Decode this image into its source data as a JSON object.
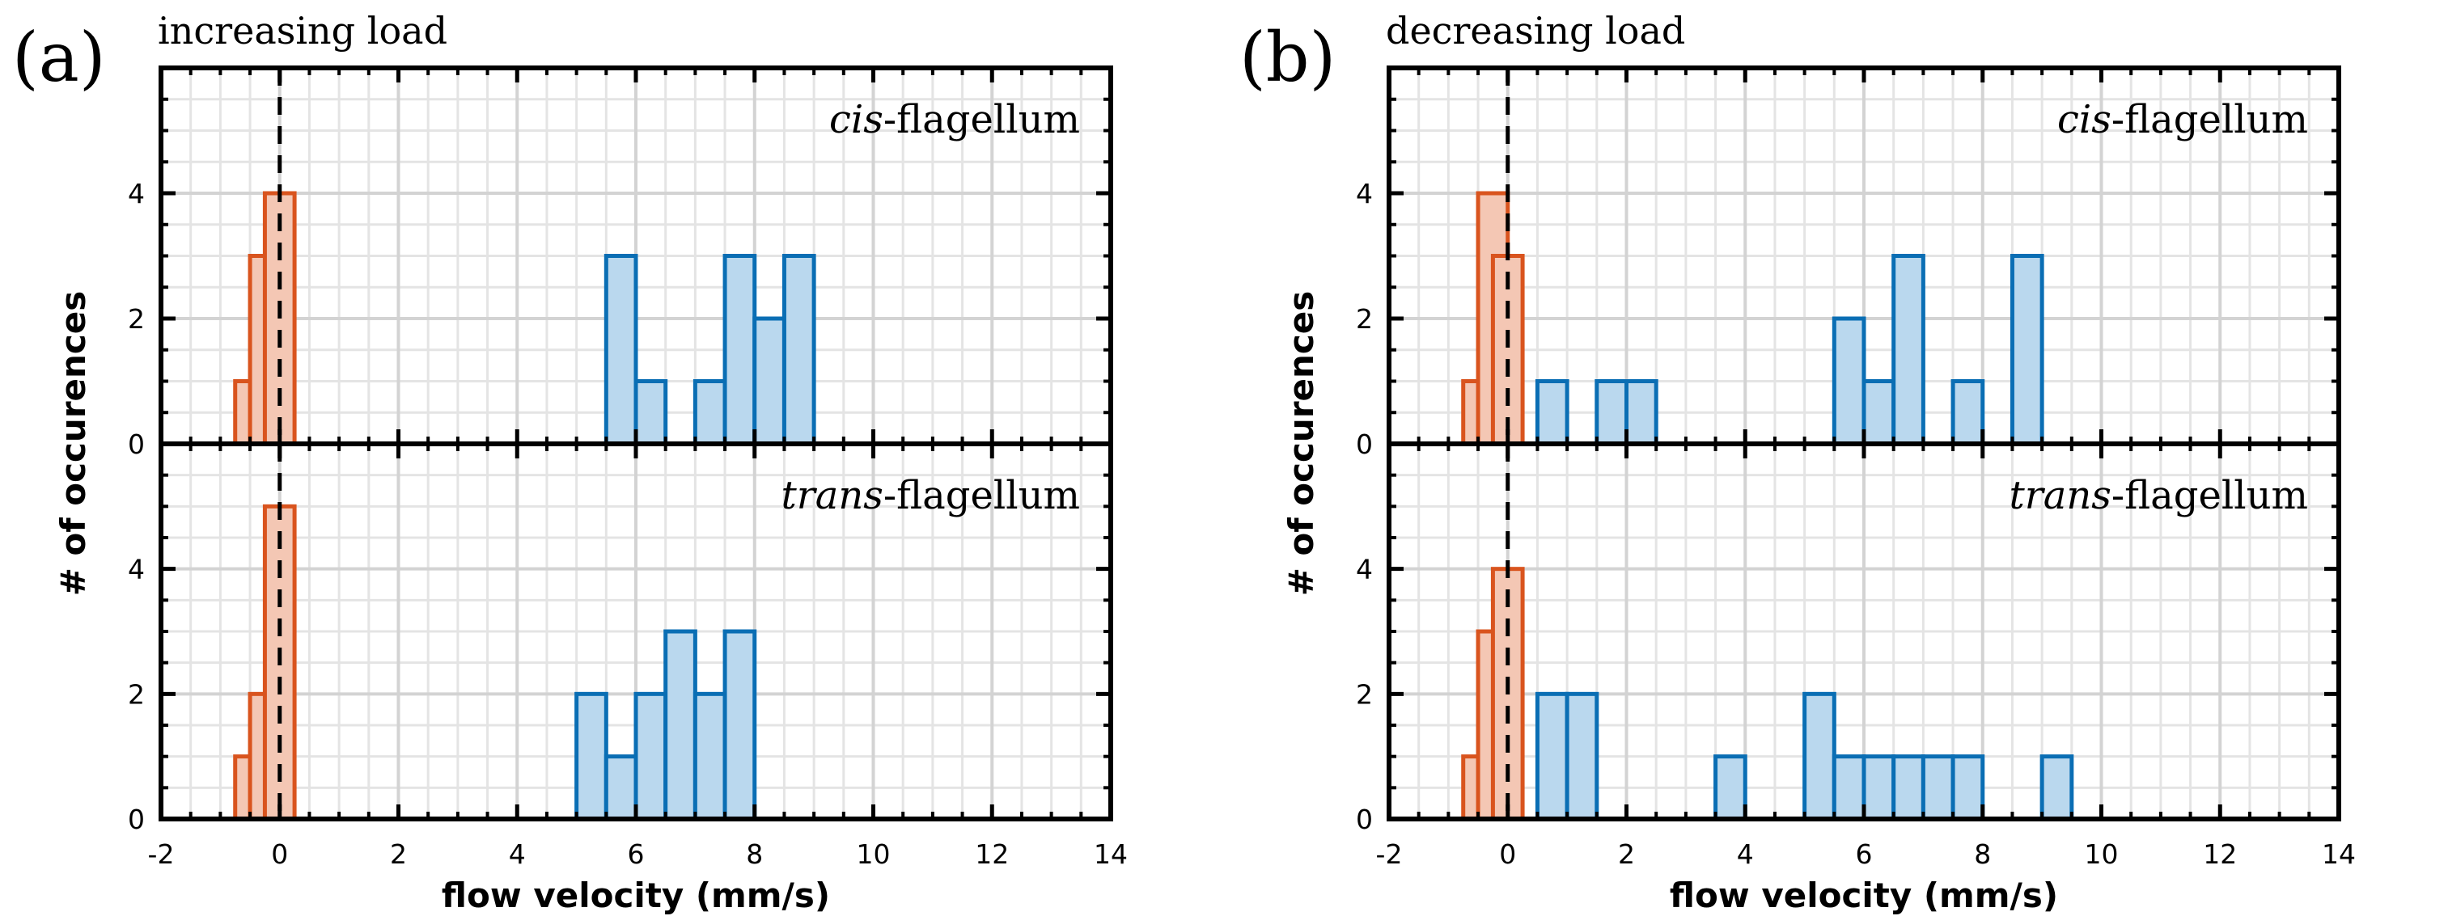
{
  "figure": {
    "panel_labels": [
      "(a)",
      "(b)"
    ],
    "panel_titles": [
      "increasing load",
      "decreasing load"
    ],
    "xlabel": "flow velocity (mm/s)",
    "ylabel": "# of occurences",
    "subplot_labels": [
      {
        "italic": "cis",
        "rest": "-flagellum"
      },
      {
        "italic": "trans",
        "rest": "-flagellum"
      }
    ],
    "colors": {
      "negative_edge": "#d9541e",
      "negative_fill": "#f4c7b4",
      "positive_edge": "#0a6eb4",
      "positive_fill": "#bad8ee",
      "grid": "#d3d3d3",
      "axis": "#000000"
    }
  },
  "chart_data": [
    {
      "type": "bar",
      "panel": "(a)",
      "title": "increasing load",
      "subplot": "cis-flagellum",
      "xlabel": "flow velocity (mm/s)",
      "ylabel": "# of occurences",
      "xlim": [
        -2,
        14
      ],
      "ylim": [
        0,
        6
      ],
      "xticks": [
        -2,
        0,
        2,
        4,
        6,
        8,
        10,
        12,
        14
      ],
      "yticks": [
        0,
        2,
        4
      ],
      "bin_width": 0.5,
      "grid": true,
      "series": [
        {
          "group": "negative",
          "bins": [
            [
              -0.75,
              1
            ],
            [
              -0.5,
              3
            ],
            [
              -0.25,
              4
            ]
          ]
        },
        {
          "group": "positive",
          "bins": [
            [
              5.5,
              3
            ],
            [
              6.0,
              1
            ],
            [
              7.0,
              1
            ],
            [
              7.5,
              3
            ],
            [
              8.0,
              2
            ],
            [
              8.5,
              3
            ]
          ]
        }
      ]
    },
    {
      "type": "bar",
      "panel": "(a)",
      "title": "increasing load",
      "subplot": "trans-flagellum",
      "xlabel": "flow velocity (mm/s)",
      "ylabel": "# of occurences",
      "xlim": [
        -2,
        14
      ],
      "ylim": [
        0,
        6
      ],
      "xticks": [
        -2,
        0,
        2,
        4,
        6,
        8,
        10,
        12,
        14
      ],
      "yticks": [
        0,
        2,
        4
      ],
      "bin_width": 0.5,
      "grid": true,
      "series": [
        {
          "group": "negative",
          "bins": [
            [
              -0.75,
              1
            ],
            [
              -0.5,
              2
            ],
            [
              -0.25,
              5
            ]
          ]
        },
        {
          "group": "positive",
          "bins": [
            [
              5.0,
              2
            ],
            [
              5.5,
              1
            ],
            [
              6.0,
              2
            ],
            [
              6.5,
              3
            ],
            [
              7.0,
              2
            ],
            [
              7.5,
              3
            ]
          ]
        }
      ]
    },
    {
      "type": "bar",
      "panel": "(b)",
      "title": "decreasing load",
      "subplot": "cis-flagellum",
      "xlabel": "flow velocity (mm/s)",
      "ylabel": "# of occurences",
      "xlim": [
        -2,
        14
      ],
      "ylim": [
        0,
        6
      ],
      "xticks": [
        -2,
        0,
        2,
        4,
        6,
        8,
        10,
        12,
        14
      ],
      "yticks": [
        0,
        2,
        4
      ],
      "bin_width": 0.5,
      "grid": true,
      "series": [
        {
          "group": "negative",
          "bins": [
            [
              -0.75,
              1
            ],
            [
              -0.5,
              4
            ],
            [
              -0.25,
              3
            ]
          ]
        },
        {
          "group": "positive",
          "bins": [
            [
              0.5,
              1
            ],
            [
              1.5,
              1
            ],
            [
              2.0,
              1
            ],
            [
              5.5,
              2
            ],
            [
              6.0,
              1
            ],
            [
              6.5,
              3
            ],
            [
              7.5,
              1
            ],
            [
              8.5,
              3
            ]
          ]
        }
      ]
    },
    {
      "type": "bar",
      "panel": "(b)",
      "title": "decreasing load",
      "subplot": "trans-flagellum",
      "xlabel": "flow velocity (mm/s)",
      "ylabel": "# of occurences",
      "xlim": [
        -2,
        14
      ],
      "ylim": [
        0,
        6
      ],
      "xticks": [
        -2,
        0,
        2,
        4,
        6,
        8,
        10,
        12,
        14
      ],
      "yticks": [
        0,
        2,
        4
      ],
      "bin_width": 0.5,
      "grid": true,
      "series": [
        {
          "group": "negative",
          "bins": [
            [
              -0.75,
              1
            ],
            [
              -0.5,
              3
            ],
            [
              -0.25,
              4
            ]
          ]
        },
        {
          "group": "positive",
          "bins": [
            [
              0.5,
              2
            ],
            [
              1.0,
              2
            ],
            [
              3.5,
              1
            ],
            [
              5.0,
              2
            ],
            [
              5.5,
              1
            ],
            [
              6.0,
              1
            ],
            [
              6.5,
              1
            ],
            [
              7.0,
              1
            ],
            [
              7.5,
              1
            ],
            [
              9.0,
              1
            ]
          ]
        }
      ]
    }
  ]
}
